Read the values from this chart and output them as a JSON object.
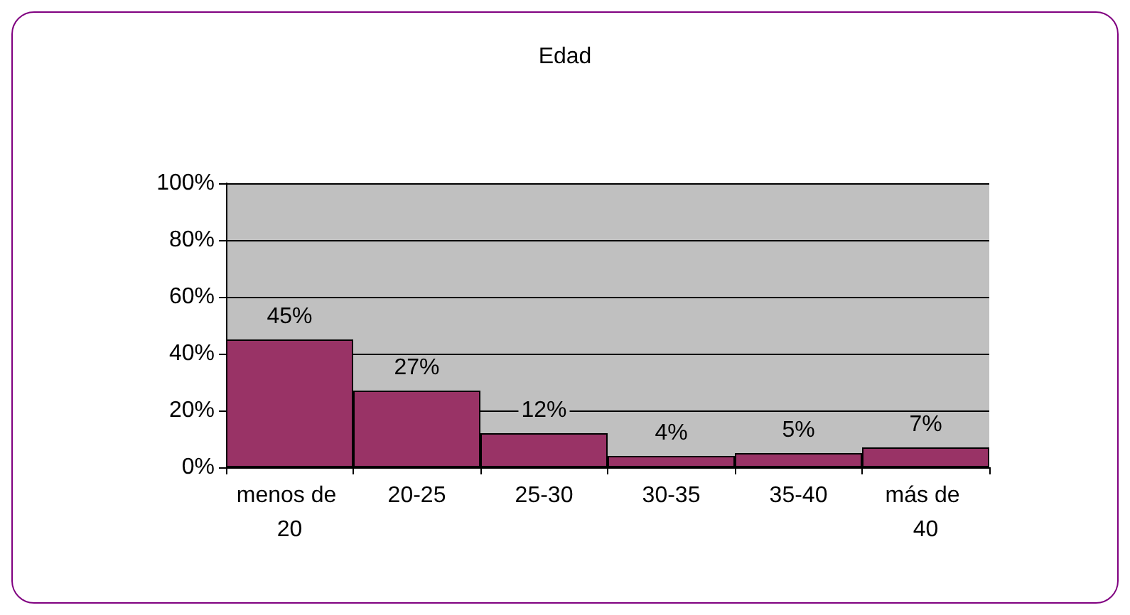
{
  "chart_data": {
    "type": "bar",
    "title": "Edad",
    "categories": [
      "menos de 20",
      "20-25",
      "25-30",
      "30-35",
      "35-40",
      "más de 40"
    ],
    "values": [
      45,
      27,
      12,
      4,
      5,
      7
    ],
    "value_labels": [
      "45%",
      "27%",
      "12%",
      "4%",
      "5%",
      "7%"
    ],
    "color": "#993366",
    "ylim": [
      0,
      100
    ],
    "yticks": [
      {
        "value": 0,
        "label": "0%"
      },
      {
        "value": 20,
        "label": "20%"
      },
      {
        "value": 40,
        "label": "40%"
      },
      {
        "value": 60,
        "label": "60%"
      },
      {
        "value": 80,
        "label": "80%"
      },
      {
        "value": 100,
        "label": "100%"
      }
    ],
    "grid": "y"
  }
}
